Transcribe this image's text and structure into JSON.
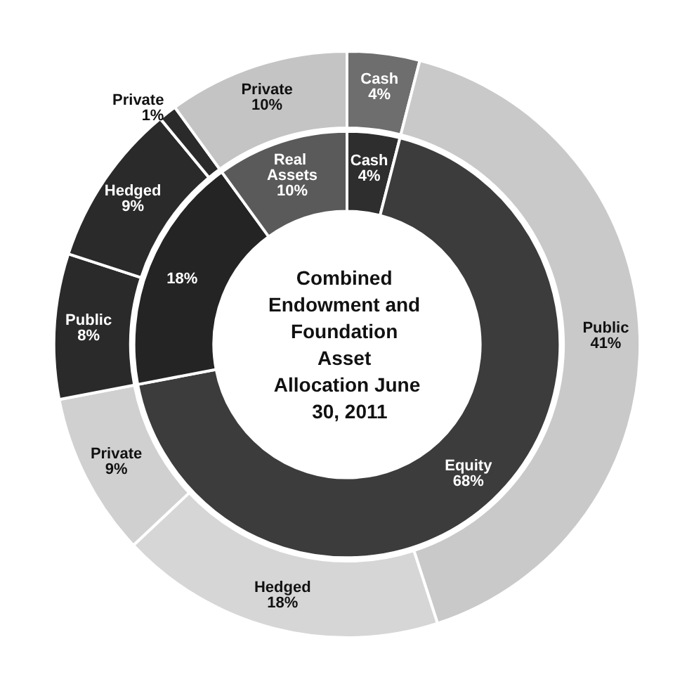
{
  "chart_data": [
    {
      "type": "donut",
      "title": "Combined Endowment and Foundation Asset Allocation June 30, 2011",
      "data_labels": true,
      "categories": [
        "Cash",
        "Equity",
        null,
        "Real Assets"
      ],
      "values": [
        4,
        68,
        18,
        10
      ],
      "value_labels": [
        "4%",
        "68%",
        "18%",
        "10%"
      ],
      "colors": [
        "#2e2e2e",
        "#3c3c3c",
        "#242424",
        "#5a5a5a"
      ]
    },
    {
      "type": "donut",
      "data_labels": true,
      "categories": [
        "Cash",
        "Public",
        "Hedged",
        "Private",
        "Public",
        "Hedged",
        "Private",
        "Private"
      ],
      "values": [
        4,
        41,
        18,
        9,
        8,
        9,
        1,
        10
      ],
      "value_labels": [
        "4%",
        "41%",
        "18%",
        "9%",
        "8%",
        "9%",
        "1%",
        "10%"
      ],
      "colors": [
        "#6e6e6e",
        "#c9c9c9",
        "#d6d6d6",
        "#d0d0d0",
        "#2a2a2a",
        "#2a2a2a",
        "#2a2a2a",
        "#c4c4c4"
      ]
    }
  ]
}
